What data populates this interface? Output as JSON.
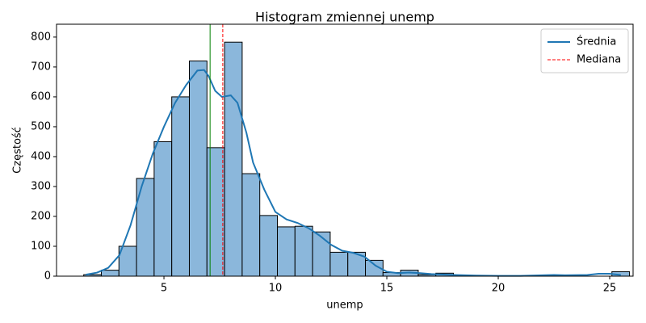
{
  "chart_data": {
    "type": "histogram",
    "title": "Histogram zmiennej unemp",
    "x_label": "unemp",
    "y_label": "Częstość",
    "bins": [
      1.4,
      2.19,
      2.98,
      3.77,
      4.56,
      5.35,
      6.14,
      6.93,
      7.72,
      8.51,
      9.3,
      10.09,
      10.88,
      11.67,
      12.46,
      13.25,
      14.04,
      14.83,
      15.62,
      16.41,
      17.2,
      17.99,
      18.78,
      19.57,
      20.36,
      21.15,
      21.94,
      22.73,
      23.52,
      24.31,
      25.1,
      25.89
    ],
    "values": [
      5,
      20,
      100,
      327,
      450,
      600,
      720,
      430,
      783,
      343,
      203,
      165,
      167,
      148,
      80,
      80,
      53,
      12,
      20,
      5,
      10,
      0,
      0,
      0,
      0,
      0,
      0,
      0,
      0,
      0,
      15
    ],
    "color": "#8bb7db",
    "series": [
      {
        "name": "Średnia",
        "color": "#1f77b4",
        "x": [
          1.5,
          2,
          2.5,
          3,
          3.5,
          4,
          4.5,
          5,
          5.5,
          6,
          6.5,
          6.8,
          7,
          7.3,
          7.6,
          8,
          8.3,
          8.7,
          9,
          9.5,
          10,
          10.5,
          11,
          11.5,
          12,
          12.5,
          13,
          13.5,
          14,
          14.5,
          15,
          15.5,
          16,
          16.5,
          17,
          18,
          19,
          20,
          21,
          22,
          22.5,
          23,
          24,
          24.5,
          25,
          25.5
        ],
        "values": [
          5,
          12,
          28,
          70,
          170,
          300,
          410,
          500,
          580,
          640,
          688,
          690,
          670,
          620,
          600,
          605,
          580,
          480,
          380,
          290,
          215,
          190,
          178,
          160,
          135,
          105,
          85,
          78,
          65,
          35,
          15,
          10,
          12,
          10,
          7,
          4,
          2,
          1,
          1,
          3,
          4,
          3,
          4,
          8,
          8,
          4
        ]
      }
    ],
    "vlines": [
      {
        "value": 7.07,
        "color": "#008000",
        "dash": false
      },
      {
        "name": "Mediana",
        "value": 7.64,
        "color": "#ff0000",
        "dash": true
      }
    ],
    "xlim": [
      0.18,
      26.05
    ],
    "ylim": [
      0,
      843
    ],
    "xticks": [
      5,
      10,
      15,
      20,
      25
    ],
    "yticks": [
      0,
      100,
      200,
      300,
      400,
      500,
      600,
      700,
      800
    ],
    "legend": "upper right"
  }
}
